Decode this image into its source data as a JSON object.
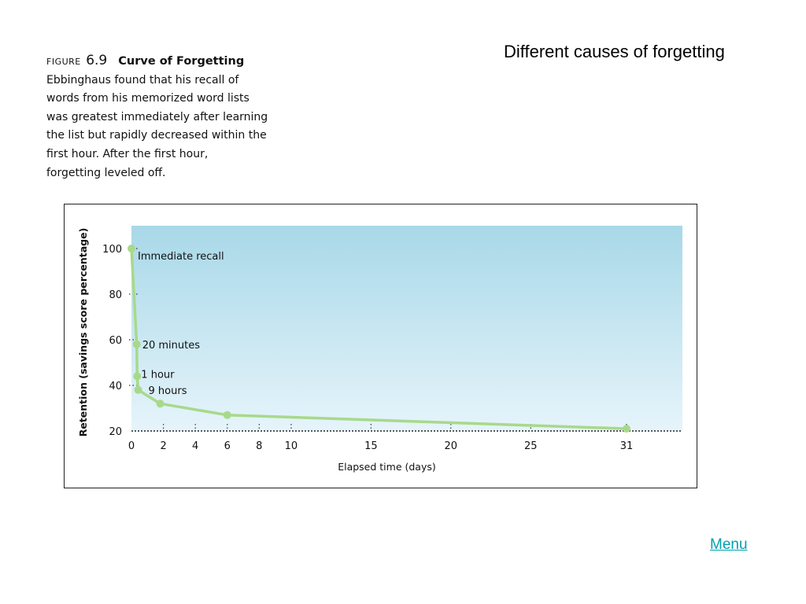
{
  "slide": {
    "title": "Different causes of forgetting",
    "menu_label": "Menu"
  },
  "caption": {
    "figure_label": "FIGURE",
    "figure_number": "6.9",
    "figure_title": "Curve of Forgetting",
    "lines": [
      "Ebbinghaus found that his recall of",
      "words from his memorized word lists",
      "was greatest immediately after learning",
      "the list but rapidly decreased within the",
      "first hour. After the first hour,",
      "forgetting leveled off."
    ]
  },
  "chart_data": {
    "type": "line",
    "title": "",
    "xlabel": "Elapsed time (days)",
    "ylabel": "Retention (savings score percentage)",
    "xlim": [
      0,
      34.5
    ],
    "ylim": [
      20,
      110
    ],
    "x_ticks": [
      0,
      2,
      4,
      6,
      8,
      10,
      15,
      20,
      25,
      31
    ],
    "y_ticks": [
      20,
      40,
      60,
      80,
      100
    ],
    "grid": false,
    "colors": {
      "line": "#a8d98a",
      "point": "#a8d98a",
      "background_top": "#a8d8e8",
      "background_bottom": "#e6f4fb"
    },
    "series": [
      {
        "x": [
          0,
          0.33,
          0.36,
          0.42,
          1.8,
          6,
          31
        ],
        "y": [
          100,
          58,
          44,
          38,
          32,
          27,
          21
        ]
      }
    ],
    "annotations": [
      {
        "text": "Immediate recall",
        "x": 0,
        "y": 100
      },
      {
        "text": "20 minutes",
        "x": 0.33,
        "y": 58
      },
      {
        "text": "1 hour",
        "x": 0.36,
        "y": 44
      },
      {
        "text": "9 hours",
        "x": 0.42,
        "y": 38
      }
    ]
  }
}
